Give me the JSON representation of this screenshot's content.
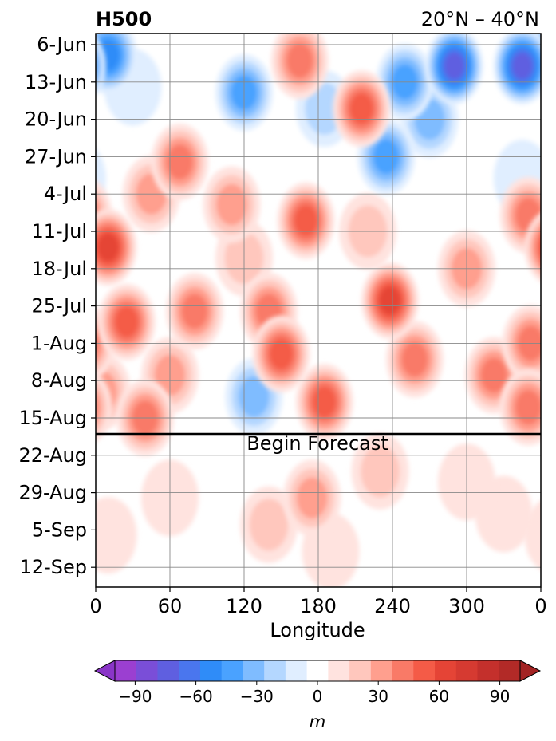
{
  "chart_data": {
    "type": "heatmap",
    "title": "H500",
    "subtitle": "20°N – 40°N",
    "xlabel": "Longitude",
    "ylabel": "",
    "x_ticks": [
      "0",
      "60",
      "120",
      "180",
      "240",
      "300",
      "0"
    ],
    "y_ticks": [
      "6-Jun",
      "13-Jun",
      "20-Jun",
      "27-Jun",
      "4-Jul",
      "11-Jul",
      "18-Jul",
      "25-Jul",
      "1-Aug",
      "8-Aug",
      "15-Aug",
      "22-Aug",
      "29-Aug",
      "5-Sep",
      "12-Sep"
    ],
    "xlim": [
      0,
      360
    ],
    "grid": true,
    "annotation": "Begin Forecast",
    "forecast_start_day": 73,
    "colorbar": {
      "label": "m",
      "ticks": [
        "−90",
        "−60",
        "−30",
        "0",
        "30",
        "60",
        "90"
      ],
      "levels": [
        -100,
        -90,
        -80,
        -70,
        -60,
        -50,
        -40,
        -30,
        -20,
        -10,
        10,
        20,
        30,
        40,
        50,
        60,
        70,
        80,
        90,
        100
      ],
      "colors": [
        "#9b3fd1",
        "#7a4ed8",
        "#5f5fe0",
        "#4a76ee",
        "#2f8cf8",
        "#4aa2ff",
        "#7fbcff",
        "#b4d7ff",
        "#e0eeff",
        "#ffffff",
        "#ffe3df",
        "#ffc7bd",
        "#ff9f8e",
        "#f97a67",
        "#f45b47",
        "#e54436",
        "#d63a31",
        "#c4302c",
        "#b22a27"
      ],
      "under_color": "#8a35c7",
      "over_color": "#a32323"
    },
    "anomaly_features": [
      {
        "lon": 345,
        "day": 4,
        "value": -75
      },
      {
        "lon": 290,
        "day": 4,
        "value": -70
      },
      {
        "lon": 250,
        "day": 7,
        "value": -40
      },
      {
        "lon": 10,
        "day": 2,
        "value": -50
      },
      {
        "lon": 270,
        "day": 14,
        "value": -30
      },
      {
        "lon": 235,
        "day": 21,
        "value": -40
      },
      {
        "lon": 120,
        "day": 9,
        "value": -45
      },
      {
        "lon": 185,
        "day": 12,
        "value": -25
      },
      {
        "lon": 128,
        "day": 66,
        "value": -30
      },
      {
        "lon": 345,
        "day": 25,
        "value": -15
      },
      {
        "lon": 30,
        "day": 8,
        "value": -15
      },
      {
        "lon": 165,
        "day": 3,
        "value": 48
      },
      {
        "lon": 215,
        "day": 12,
        "value": 55
      },
      {
        "lon": 68,
        "day": 22,
        "value": 42
      },
      {
        "lon": 170,
        "day": 33,
        "value": 52
      },
      {
        "lon": 10,
        "day": 38,
        "value": 65
      },
      {
        "lon": 238,
        "day": 48,
        "value": 62
      },
      {
        "lon": 25,
        "day": 52,
        "value": 58
      },
      {
        "lon": 140,
        "day": 50,
        "value": 40
      },
      {
        "lon": 80,
        "day": 50,
        "value": 42
      },
      {
        "lon": 150,
        "day": 58,
        "value": 52
      },
      {
        "lon": 185,
        "day": 67,
        "value": 50
      },
      {
        "lon": 258,
        "day": 59,
        "value": 42
      },
      {
        "lon": 322,
        "day": 62,
        "value": 40
      },
      {
        "lon": 350,
        "day": 32,
        "value": 45
      },
      {
        "lon": 352,
        "day": 56,
        "value": 42
      },
      {
        "lon": 40,
        "day": 70,
        "value": 48
      },
      {
        "lon": 350,
        "day": 68,
        "value": 45
      },
      {
        "lon": 110,
        "day": 30,
        "value": 32
      },
      {
        "lon": 45,
        "day": 28,
        "value": 32
      },
      {
        "lon": 120,
        "day": 40,
        "value": 28
      },
      {
        "lon": 300,
        "day": 42,
        "value": 30
      },
      {
        "lon": 60,
        "day": 62,
        "value": 30
      },
      {
        "lon": 220,
        "day": 35,
        "value": 28
      },
      {
        "lon": 5,
        "day": 65,
        "value": 35
      },
      {
        "lon": 175,
        "day": 85,
        "value": 30
      },
      {
        "lon": 230,
        "day": 80,
        "value": 25
      },
      {
        "lon": 140,
        "day": 90,
        "value": 20
      },
      {
        "lon": 190,
        "day": 95,
        "value": 18
      },
      {
        "lon": 60,
        "day": 85,
        "value": 15
      },
      {
        "lon": 10,
        "day": 92,
        "value": 12
      },
      {
        "lon": 300,
        "day": 82,
        "value": 15
      },
      {
        "lon": 330,
        "day": 88,
        "value": 12
      }
    ]
  }
}
